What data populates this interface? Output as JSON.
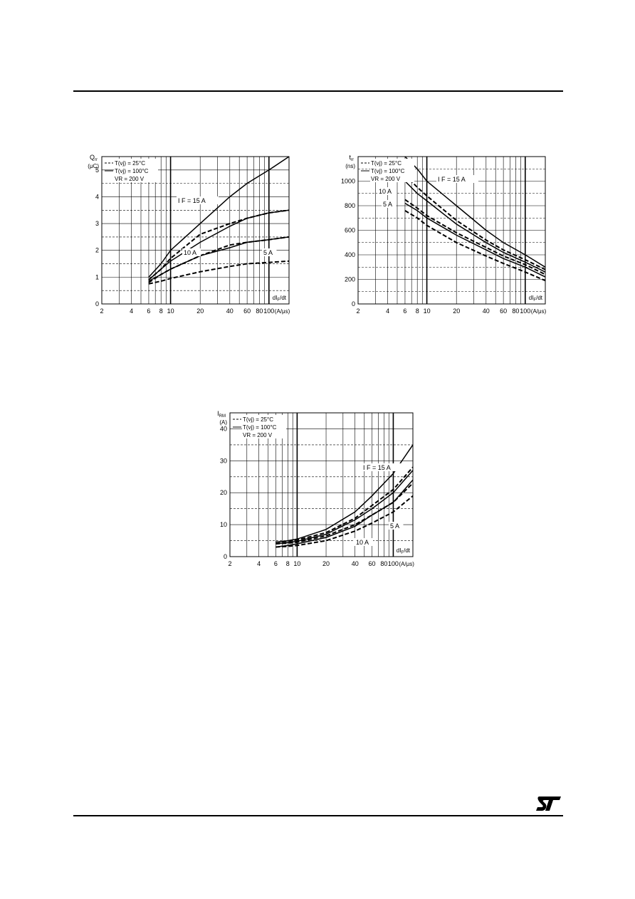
{
  "page": {
    "logo_text": "ST"
  },
  "charts": [
    {
      "id": "qrr",
      "type": "line",
      "yunit_top": "Q",
      "yunit_sub": "rr",
      "yunit_paren": "(μC)",
      "xlabel": "dI",
      "xlabel_sub": "F",
      "xlabel_tail": "/dt",
      "xunit": "(A/μs)",
      "log_x": true,
      "xlim": [
        2,
        160
      ],
      "ylim": [
        0,
        5.5
      ],
      "xticks": [
        "2",
        "4",
        "6",
        "8",
        "10",
        "20",
        "40",
        "60",
        "80",
        "100"
      ],
      "xtick_values": [
        2,
        4,
        6,
        8,
        10,
        20,
        40,
        60,
        80,
        100
      ],
      "yticks": [
        "0",
        "1",
        "2",
        "3",
        "4",
        "5"
      ],
      "ytick_values": [
        0,
        1,
        2,
        3,
        4,
        5
      ],
      "legend": [
        "T(vj) = 25°C",
        "T(vj) = 100°C",
        "VR = 200 V"
      ],
      "legend_styles": [
        "dashed",
        "solid",
        "none"
      ],
      "annotations": [
        "I F = 15 A",
        "10 A",
        "5 A"
      ],
      "chart_data": {
        "type": "line",
        "series": [
          {
            "ann": "15A-100C",
            "style": "solid",
            "x": [
              6,
              8,
              10,
              20,
              40,
              60,
              100,
              160
            ],
            "y": [
              1.0,
              1.5,
              2.0,
              3.0,
              4.0,
              4.5,
              5.0,
              5.5
            ]
          },
          {
            "ann": "15A-25C",
            "style": "dashed",
            "x": [
              6,
              8,
              10,
              20,
              40,
              60,
              100,
              160
            ],
            "y": [
              0.9,
              1.3,
              1.7,
              2.6,
              3.0,
              3.2,
              3.4,
              3.5
            ]
          },
          {
            "ann": "10A-100C",
            "style": "solid",
            "x": [
              6,
              8,
              10,
              20,
              40,
              60,
              100,
              160
            ],
            "y": [
              0.9,
              1.3,
              1.6,
              2.3,
              2.9,
              3.2,
              3.4,
              3.5
            ]
          },
          {
            "ann": "10A-25C",
            "style": "dashed",
            "x": [
              6,
              8,
              10,
              20,
              40,
              60,
              100,
              160
            ],
            "y": [
              0.8,
              1.1,
              1.3,
              1.8,
              2.2,
              2.3,
              2.4,
              2.5
            ]
          },
          {
            "ann": "5A-100C",
            "style": "solid",
            "x": [
              6,
              8,
              10,
              20,
              40,
              60,
              100,
              160
            ],
            "y": [
              0.85,
              1.1,
              1.3,
              1.8,
              2.1,
              2.3,
              2.4,
              2.5
            ]
          },
          {
            "ann": "5A-25C",
            "style": "dashed",
            "x": [
              6,
              8,
              10,
              20,
              40,
              60,
              100,
              160
            ],
            "y": [
              0.75,
              0.85,
              0.95,
              1.2,
              1.4,
              1.5,
              1.55,
              1.6
            ]
          }
        ]
      }
    },
    {
      "id": "trr",
      "type": "line",
      "yunit_top": "t",
      "yunit_sub": "rr",
      "yunit_paren": "(ns)",
      "xlabel": "dI",
      "xlabel_sub": "F",
      "xlabel_tail": "/dt",
      "xunit": "(A/μs)",
      "log_x": true,
      "xlim": [
        2,
        160
      ],
      "ylim": [
        0,
        1200
      ],
      "xticks": [
        "2",
        "4",
        "6",
        "8",
        "10",
        "20",
        "40",
        "60",
        "80",
        "100"
      ],
      "xtick_values": [
        2,
        4,
        6,
        8,
        10,
        20,
        40,
        60,
        80,
        100
      ],
      "yticks": [
        "0",
        "200",
        "400",
        "600",
        "800",
        "1000"
      ],
      "ytick_values": [
        0,
        200,
        400,
        600,
        800,
        1000
      ],
      "legend": [
        "T(vj) = 25°C",
        "T(vj) = 100°C",
        "VR = 200 V"
      ],
      "legend_styles": [
        "dashed",
        "solid",
        "none"
      ],
      "annotations": [
        "I F = 15 A",
        "10 A",
        "5 A"
      ],
      "chart_data": {
        "type": "line",
        "series": [
          {
            "ann": "15A-100C",
            "style": "solid",
            "x": [
              6,
              8,
              10,
              20,
              40,
              60,
              100,
              160
            ],
            "y": [
              1200,
              1100,
              1000,
              800,
              600,
              500,
              400,
              300
            ]
          },
          {
            "ann": "15A-25C",
            "style": "dashed",
            "x": [
              6,
              8,
              10,
              20,
              40,
              60,
              100,
              160
            ],
            "y": [
              1050,
              950,
              880,
              680,
              520,
              440,
              360,
              280
            ]
          },
          {
            "ann": "10A-100C",
            "style": "solid",
            "x": [
              6,
              8,
              10,
              20,
              40,
              60,
              100,
              160
            ],
            "y": [
              1000,
              900,
              840,
              650,
              500,
              420,
              340,
              260
            ]
          },
          {
            "ann": "10A-25C",
            "style": "dashed",
            "x": [
              6,
              8,
              10,
              20,
              40,
              60,
              100,
              160
            ],
            "y": [
              850,
              780,
              720,
              580,
              460,
              390,
              320,
              240
            ]
          },
          {
            "ann": "5A-100C",
            "style": "solid",
            "x": [
              6,
              8,
              10,
              20,
              40,
              60,
              100,
              160
            ],
            "y": [
              820,
              760,
              700,
              560,
              440,
              370,
              300,
              220
            ]
          },
          {
            "ann": "5A-25C",
            "style": "dashed",
            "x": [
              6,
              8,
              10,
              20,
              40,
              60,
              100,
              160
            ],
            "y": [
              760,
              700,
              640,
              500,
              390,
              330,
              260,
              190
            ]
          }
        ]
      }
    },
    {
      "id": "irm",
      "type": "line",
      "yunit_top": "I",
      "yunit_sub": "RM",
      "yunit_paren": "(A)",
      "xlabel": "dI",
      "xlabel_sub": "F",
      "xlabel_tail": "/dt",
      "xunit": "(A/μs)",
      "log_x": true,
      "xlim": [
        2,
        160
      ],
      "ylim": [
        0,
        45
      ],
      "xticks": [
        "2",
        "4",
        "6",
        "8",
        "10",
        "20",
        "40",
        "60",
        "80",
        "100"
      ],
      "xtick_values": [
        2,
        4,
        6,
        8,
        10,
        20,
        40,
        60,
        80,
        100
      ],
      "yticks": [
        "0",
        "10",
        "20",
        "30",
        "40"
      ],
      "ytick_values": [
        0,
        10,
        20,
        30,
        40
      ],
      "legend": [
        "T(vj) = 25°C",
        "T(vj) = 100°C",
        "VR = 200 V"
      ],
      "legend_styles": [
        "dashed",
        "solid",
        "none"
      ],
      "annotations": [
        "I F = 15 A",
        "5 A",
        "10 A"
      ],
      "chart_data": {
        "type": "line",
        "series": [
          {
            "ann": "15A-100C",
            "style": "solid",
            "x": [
              6,
              8,
              10,
              20,
              40,
              60,
              100,
              160
            ],
            "y": [
              4.5,
              5.0,
              5.5,
              8.5,
              14,
              19,
              26,
              35
            ]
          },
          {
            "ann": "15A-25C",
            "style": "dashed",
            "x": [
              6,
              8,
              10,
              20,
              40,
              60,
              100,
              160
            ],
            "y": [
              4.5,
              4.8,
              5.2,
              7.5,
              12,
              16,
              21,
              28
            ]
          },
          {
            "ann": "10A-100C",
            "style": "solid",
            "x": [
              6,
              8,
              10,
              20,
              40,
              60,
              100,
              160
            ],
            "y": [
              4.0,
              4.4,
              4.8,
              7.0,
              11.5,
              15,
              20,
              27
            ]
          },
          {
            "ann": "10A-25C",
            "style": "dashed",
            "x": [
              6,
              8,
              10,
              20,
              40,
              60,
              100,
              160
            ],
            "y": [
              4.0,
              4.2,
              4.5,
              6.5,
              10,
              13,
              17,
              23
            ]
          },
          {
            "ann": "5A-100C",
            "style": "solid",
            "x": [
              6,
              8,
              10,
              20,
              40,
              60,
              100,
              160
            ],
            "y": [
              3.0,
              3.5,
              4.0,
              6.0,
              9.5,
              13,
              17,
              24
            ]
          },
          {
            "ann": "5A-25C",
            "style": "dashed",
            "x": [
              6,
              8,
              10,
              20,
              40,
              60,
              100,
              160
            ],
            "y": [
              3.0,
              3.2,
              3.5,
              5.0,
              8.0,
              10.5,
              14,
              19
            ]
          }
        ]
      }
    }
  ]
}
